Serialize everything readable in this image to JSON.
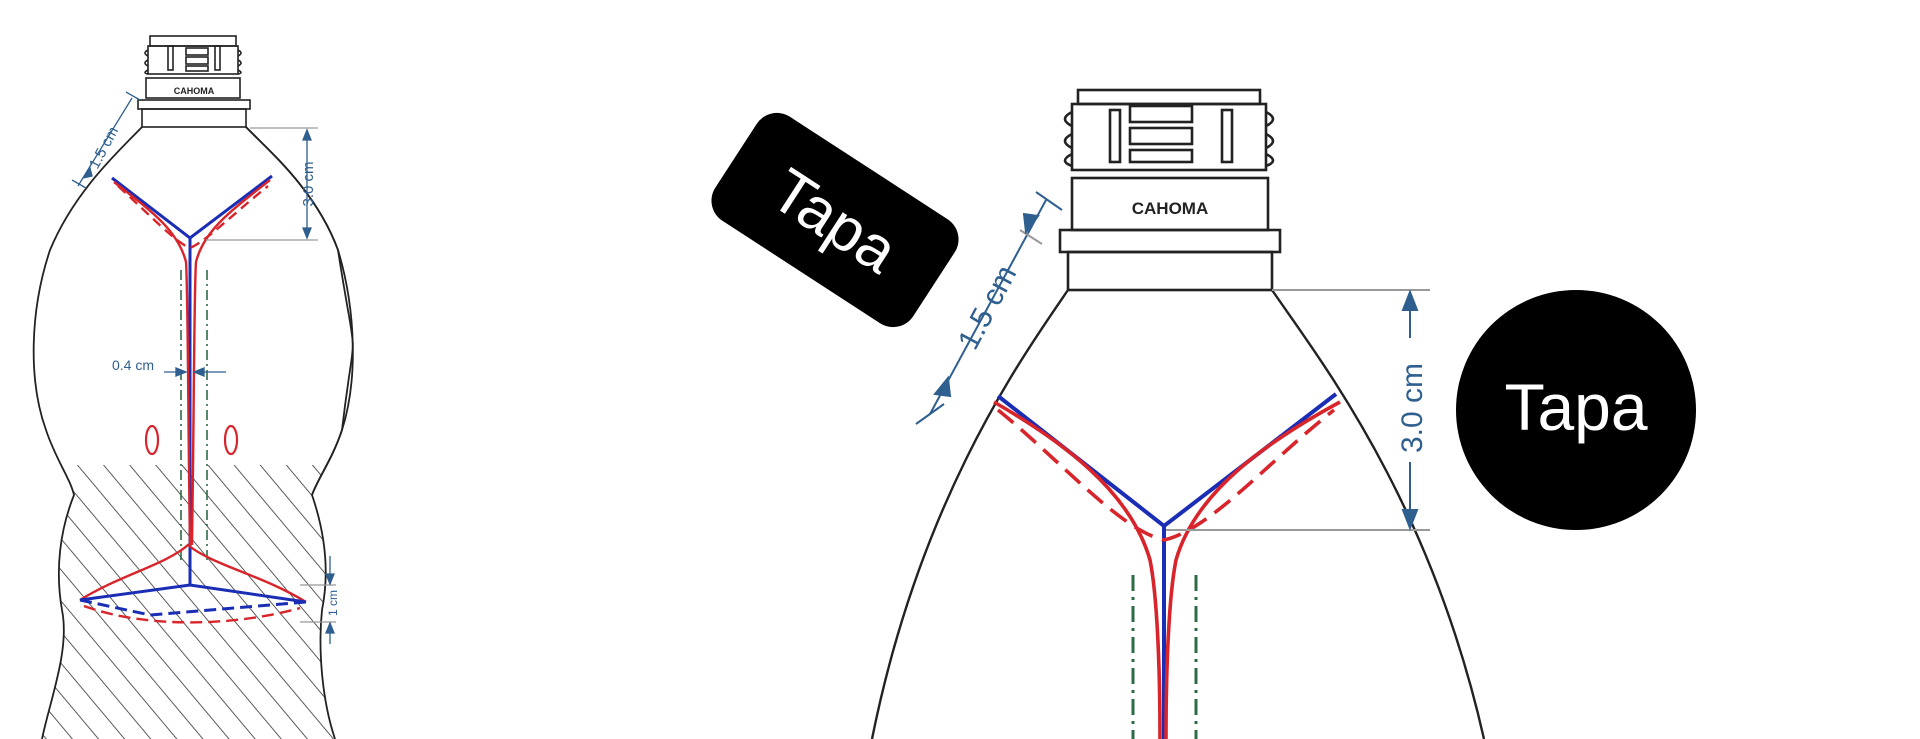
{
  "left_diagram": {
    "brand": "CAHOMA",
    "dim_neck": "1.5 cm",
    "dim_shoulder": "3.0 cm",
    "dim_gap": "0.4 cm",
    "dim_base": "1 cm",
    "hole_left": "0",
    "hole_right": "0"
  },
  "right_diagram": {
    "brand": "CAHOMA",
    "dim_neck": "1.5 cm",
    "dim_shoulder": "3.0 cm"
  },
  "labels": {
    "tag_rect": "Tapa",
    "tag_circle": "Tapa"
  },
  "colors": {
    "outline": "#222222",
    "cut_blue": "#1a2db5",
    "cut_red": "#d8242b",
    "dimension": "#2f5f8f",
    "center_line": "#2e6b45",
    "tag_bg": "#000000"
  }
}
